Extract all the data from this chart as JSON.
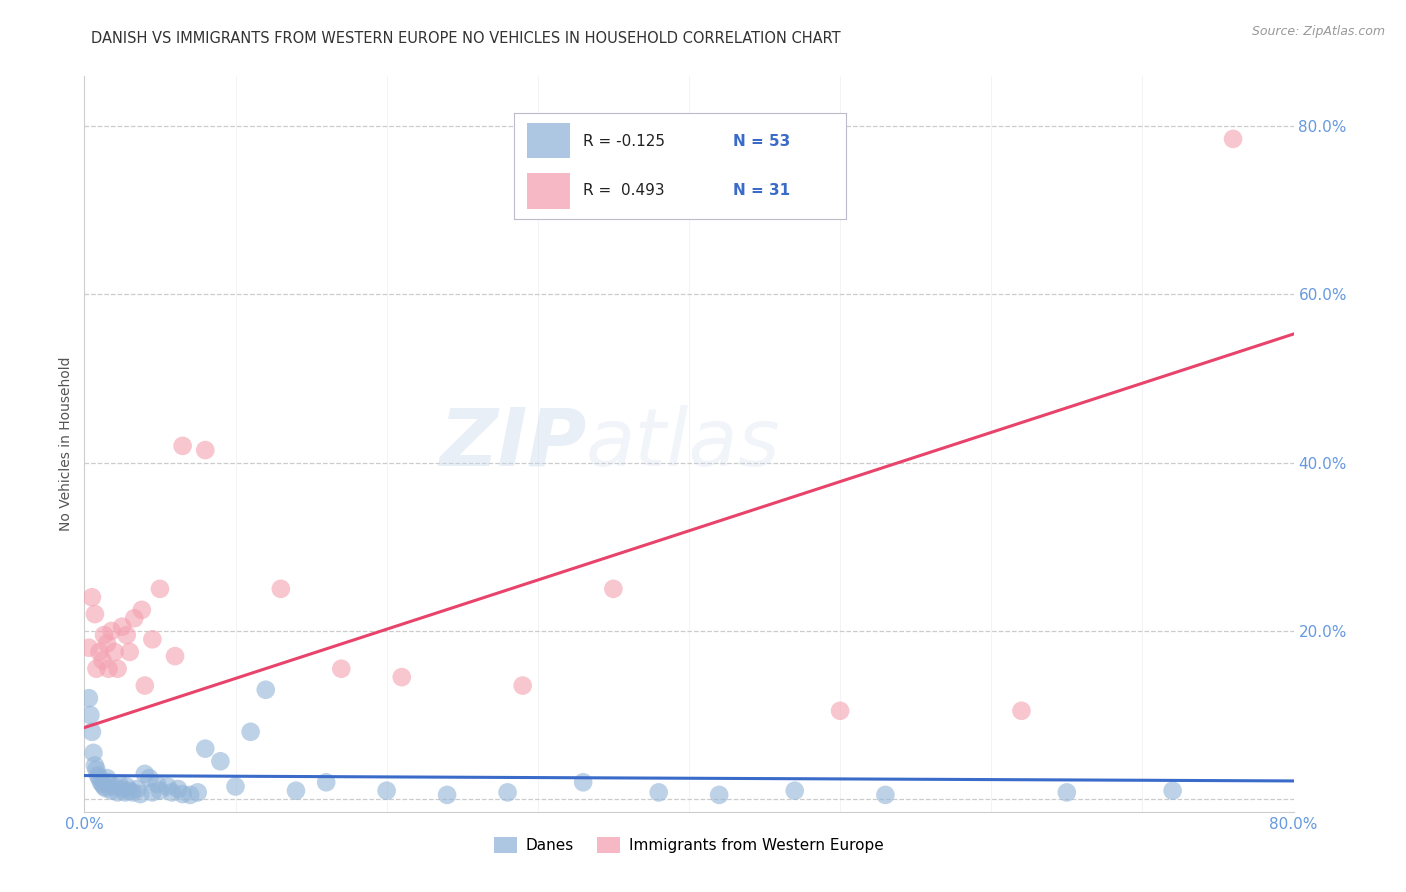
{
  "title": "DANISH VS IMMIGRANTS FROM WESTERN EUROPE NO VEHICLES IN HOUSEHOLD CORRELATION CHART",
  "source": "Source: ZipAtlas.com",
  "ylabel": "No Vehicles in Household",
  "legend_label1": "Danes",
  "legend_label2": "Immigrants from Western Europe",
  "blue_color": "#92B4D8",
  "pink_color": "#F4A0B0",
  "blue_line_color": "#3A6BC9",
  "pink_line_color": "#E8436A",
  "r1": -0.125,
  "n1": 53,
  "r2": 0.493,
  "n2": 31,
  "danes_slope": -0.008,
  "danes_intercept": 0.028,
  "imm_slope": 0.585,
  "imm_intercept": 0.085,
  "danes_x": [
    0.003,
    0.004,
    0.005,
    0.006,
    0.007,
    0.008,
    0.009,
    0.01,
    0.011,
    0.012,
    0.013,
    0.014,
    0.015,
    0.016,
    0.018,
    0.02,
    0.022,
    0.023,
    0.025,
    0.027,
    0.028,
    0.03,
    0.032,
    0.035,
    0.037,
    0.04,
    0.043,
    0.045,
    0.048,
    0.05,
    0.055,
    0.058,
    0.062,
    0.065,
    0.07,
    0.075,
    0.08,
    0.09,
    0.1,
    0.11,
    0.12,
    0.14,
    0.16,
    0.2,
    0.24,
    0.28,
    0.33,
    0.38,
    0.42,
    0.47,
    0.53,
    0.65,
    0.72
  ],
  "danes_y": [
    0.12,
    0.1,
    0.08,
    0.055,
    0.04,
    0.035,
    0.028,
    0.025,
    0.02,
    0.018,
    0.015,
    0.013,
    0.025,
    0.02,
    0.01,
    0.015,
    0.008,
    0.018,
    0.012,
    0.008,
    0.015,
    0.01,
    0.008,
    0.012,
    0.006,
    0.03,
    0.025,
    0.008,
    0.018,
    0.01,
    0.015,
    0.008,
    0.012,
    0.006,
    0.005,
    0.008,
    0.06,
    0.045,
    0.015,
    0.08,
    0.13,
    0.01,
    0.02,
    0.01,
    0.005,
    0.008,
    0.02,
    0.008,
    0.005,
    0.01,
    0.005,
    0.008,
    0.01
  ],
  "immigrants_x": [
    0.003,
    0.005,
    0.007,
    0.008,
    0.01,
    0.012,
    0.013,
    0.015,
    0.016,
    0.018,
    0.02,
    0.022,
    0.025,
    0.028,
    0.03,
    0.033,
    0.038,
    0.04,
    0.045,
    0.05,
    0.06,
    0.065,
    0.08,
    0.13,
    0.17,
    0.21,
    0.29,
    0.35,
    0.5,
    0.62,
    0.76
  ],
  "immigrants_y": [
    0.18,
    0.24,
    0.22,
    0.155,
    0.175,
    0.165,
    0.195,
    0.185,
    0.155,
    0.2,
    0.175,
    0.155,
    0.205,
    0.195,
    0.175,
    0.215,
    0.225,
    0.135,
    0.19,
    0.25,
    0.17,
    0.42,
    0.415,
    0.25,
    0.155,
    0.145,
    0.135,
    0.25,
    0.105,
    0.105,
    0.785
  ],
  "watermark_line1": "ZIP",
  "watermark_line2": "atlas",
  "background_color": "#ffffff",
  "grid_color": "#cccccc",
  "title_color": "#333333",
  "tick_color": "#6699DD",
  "ylabel_color": "#555555",
  "xlim": [
    0.0,
    0.8
  ],
  "ylim": [
    -0.015,
    0.86
  ],
  "ytick_vals": [
    0.0,
    0.2,
    0.4,
    0.6,
    0.8
  ]
}
